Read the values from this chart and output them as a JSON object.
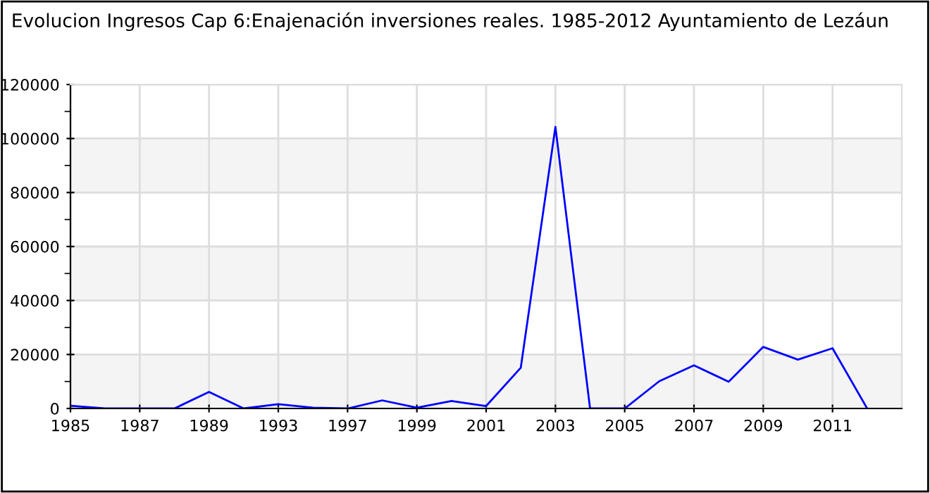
{
  "chart_data": {
    "type": "line",
    "title": "Evolucion Ingresos Cap 6:Enajenación inversiones reales. 1985-2012 Ayuntamiento de Lezáun",
    "categories": [
      "1985",
      null,
      "1987",
      null,
      "1989",
      null,
      "1993",
      null,
      "1997",
      null,
      "1999",
      null,
      "2001",
      null,
      "2003",
      null,
      "2005",
      null,
      "2007",
      null,
      "2009",
      null,
      "2011",
      null
    ],
    "series": [
      {
        "color": "#0000ff",
        "values": [
          1000,
          0,
          0,
          0,
          6100,
          0,
          1600,
          300,
          0,
          3000,
          300,
          2800,
          900,
          15100,
          104300,
          0,
          0,
          10100,
          16000,
          9900,
          22800,
          18100,
          22300,
          0
        ]
      }
    ],
    "ylim": [
      0,
      120000
    ],
    "yticks": [
      0,
      20000,
      40000,
      60000,
      80000,
      100000,
      120000
    ],
    "grid": true,
    "legend": false,
    "marker": "none",
    "line_style": "solid"
  }
}
